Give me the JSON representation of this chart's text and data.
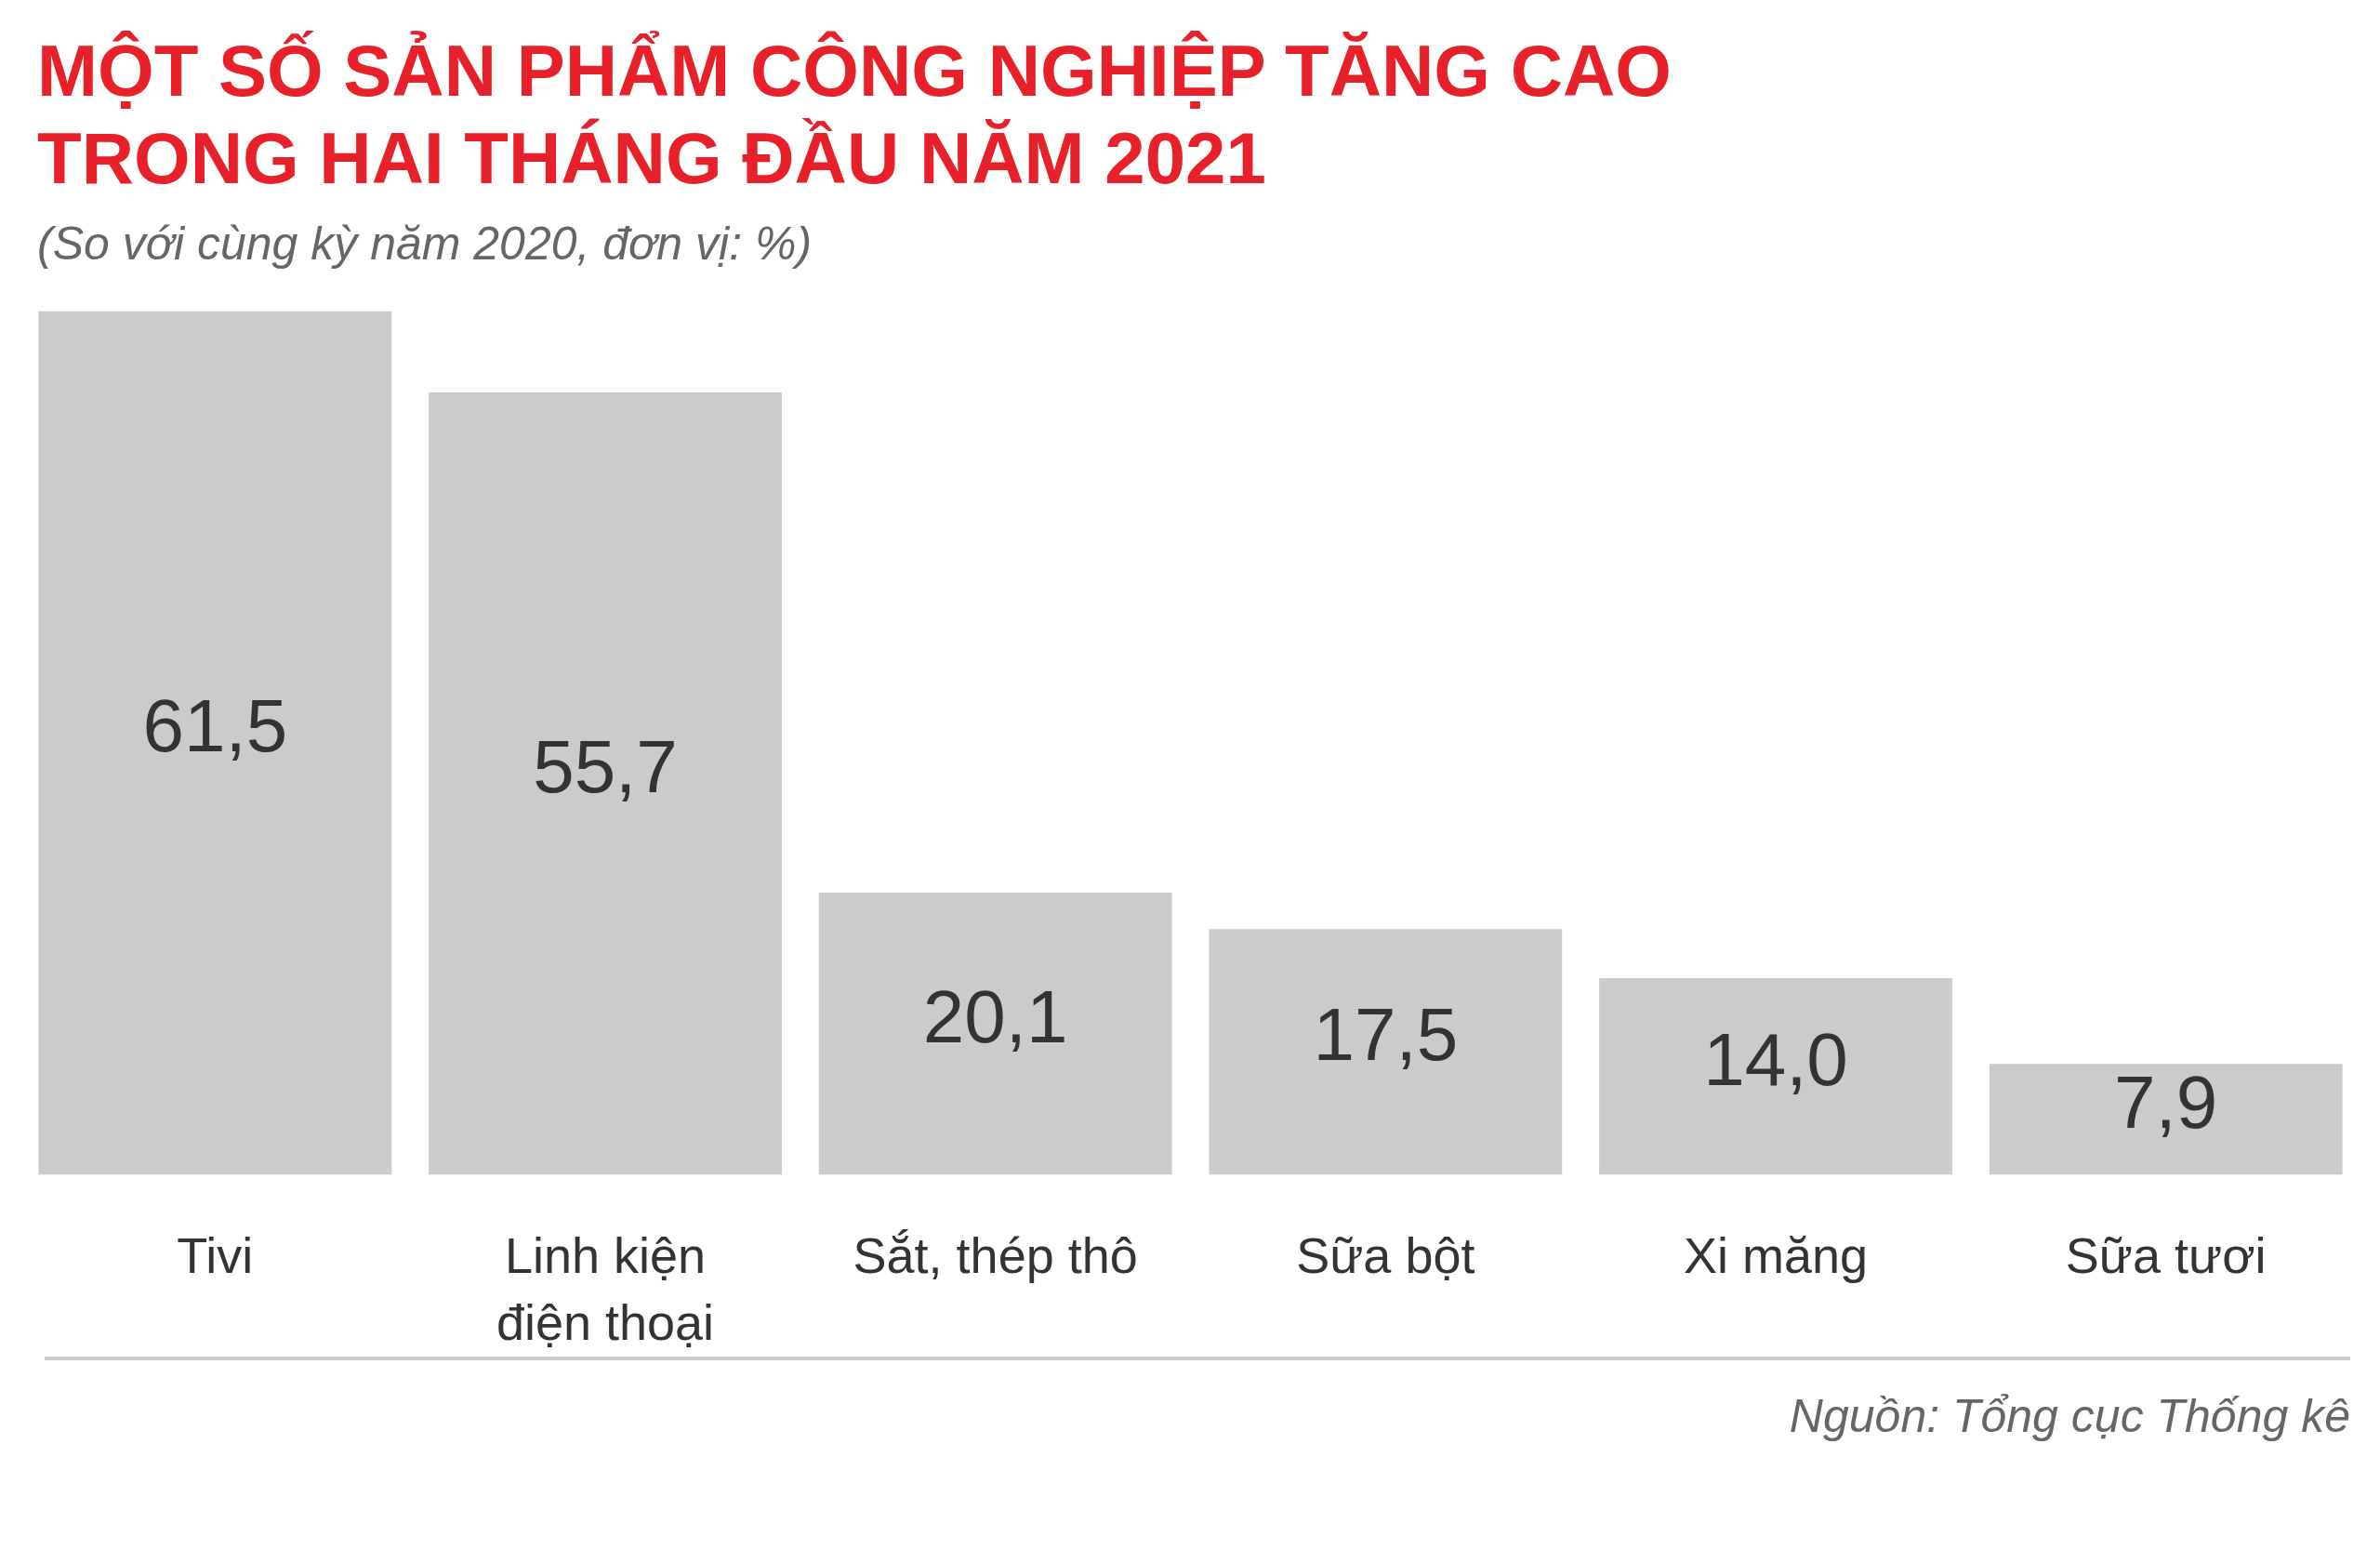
{
  "chart_data": {
    "type": "bar",
    "title": "MỘT SỐ SẢN PHẨM CÔNG NGHIỆP TĂNG CAO\nTRONG HAI THÁNG ĐẦU NĂM 2021",
    "subtitle": "(So với cùng kỳ năm 2020, đơn vị: %)",
    "categories": [
      "Tivi",
      "Linh kiện\nđiện thoại",
      "Sắt, thép thô",
      "Sữa bột",
      "Xi măng",
      "Sữa tươi"
    ],
    "values": [
      61.5,
      55.7,
      20.1,
      17.5,
      14.0,
      7.9
    ],
    "value_labels": [
      "61,5",
      "55,7",
      "20,1",
      "17,5",
      "14,0",
      "7,9"
    ],
    "color": "#cccaca",
    "annotations": [
      "Nguồn: Tổng cục Thống kê"
    ]
  }
}
